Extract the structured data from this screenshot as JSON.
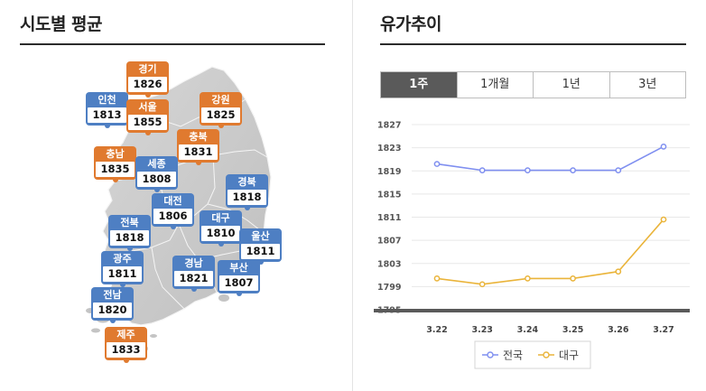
{
  "left_panel": {
    "title": "시도별 평균"
  },
  "right_panel": {
    "title": "유가추이"
  },
  "regions": [
    {
      "name": "경기",
      "value": "1826",
      "color": "orange"
    },
    {
      "name": "인천",
      "value": "1813",
      "color": "blue"
    },
    {
      "name": "서울",
      "value": "1855",
      "color": "orange"
    },
    {
      "name": "강원",
      "value": "1825",
      "color": "orange"
    },
    {
      "name": "충북",
      "value": "1831",
      "color": "orange"
    },
    {
      "name": "충남",
      "value": "1835",
      "color": "orange"
    },
    {
      "name": "세종",
      "value": "1808",
      "color": "blue"
    },
    {
      "name": "경북",
      "value": "1818",
      "color": "blue"
    },
    {
      "name": "대전",
      "value": "1806",
      "color": "blue"
    },
    {
      "name": "대구",
      "value": "1810",
      "color": "blue"
    },
    {
      "name": "전북",
      "value": "1818",
      "color": "blue"
    },
    {
      "name": "울산",
      "value": "1811",
      "color": "blue"
    },
    {
      "name": "광주",
      "value": "1811",
      "color": "blue"
    },
    {
      "name": "경남",
      "value": "1821",
      "color": "blue"
    },
    {
      "name": "부산",
      "value": "1807",
      "color": "blue"
    },
    {
      "name": "전남",
      "value": "1820",
      "color": "blue"
    },
    {
      "name": "제주",
      "value": "1833",
      "color": "orange"
    }
  ],
  "colors": {
    "blue": "#4e7fc3",
    "orange": "#e07a2f",
    "series_national": "#7f8ff0",
    "series_daegu": "#eab43a"
  },
  "tabs": [
    {
      "label": "1주",
      "active": true
    },
    {
      "label": "1개월",
      "active": false
    },
    {
      "label": "1년",
      "active": false
    },
    {
      "label": "3년",
      "active": false
    }
  ],
  "chart_data": {
    "type": "line",
    "x": [
      "3.22",
      "3.23",
      "3.24",
      "3.25",
      "3.26",
      "3.27"
    ],
    "series": [
      {
        "name": "전국",
        "values": [
          1820.2,
          1819.1,
          1819.1,
          1819.1,
          1819.1,
          1823.2
        ]
      },
      {
        "name": "대구",
        "values": [
          1800.4,
          1799.4,
          1800.4,
          1800.4,
          1801.6,
          1810.6
        ]
      }
    ],
    "y_ticks": [
      "1827",
      "1823",
      "1819",
      "1815",
      "1811",
      "1807",
      "1803",
      "1799",
      "1795"
    ],
    "ylim": [
      1795,
      1827
    ],
    "grid": true,
    "legend": "bottom"
  }
}
